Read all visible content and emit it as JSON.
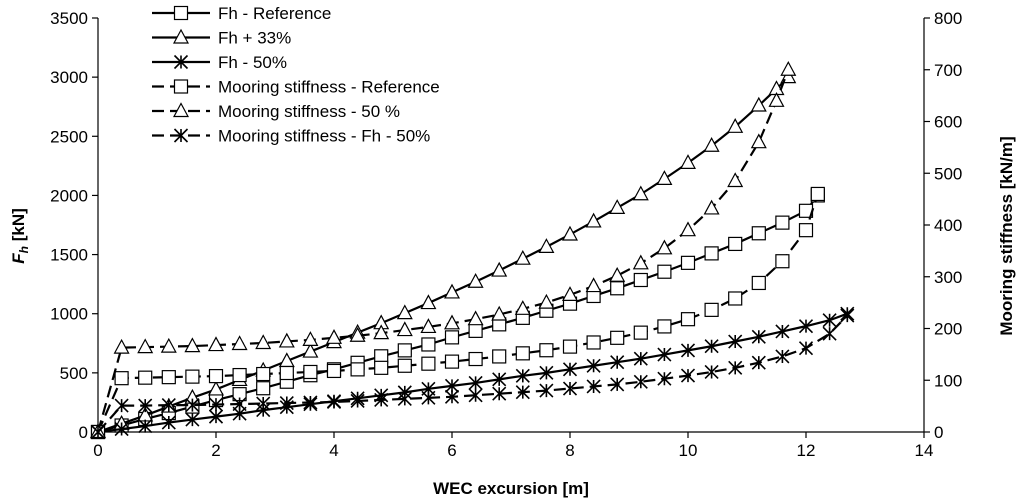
{
  "chart_data": {
    "type": "line",
    "title": "",
    "xlabel": "WEC excursion [m]",
    "ylabel_main": "F",
    "ylabel_sub": "h",
    "ylabel_unit": " [kN]",
    "y2label": "Mooring stiffness [kN/m]",
    "xlim": [
      0,
      14
    ],
    "ylim": [
      0,
      3500
    ],
    "y2lim": [
      0,
      800
    ],
    "x_ticks": [
      "0",
      "2",
      "4",
      "6",
      "8",
      "10",
      "12",
      "14"
    ],
    "y_ticks": [
      "0",
      "500",
      "1000",
      "1500",
      "2000",
      "2500",
      "3000",
      "3500"
    ],
    "y2_ticks": [
      "0",
      "100",
      "200",
      "300",
      "400",
      "500",
      "600",
      "700",
      "800"
    ],
    "grid": false,
    "legend_position": "top-left",
    "series": [
      {
        "name": "Fh - Reference",
        "axis": "left",
        "line_style": "solid",
        "marker": "square",
        "x": [
          0,
          0.4,
          0.8,
          1.2,
          1.6,
          2.0,
          2.4,
          2.8,
          3.2,
          3.6,
          4.0,
          4.4,
          4.8,
          5.2,
          5.6,
          6.0,
          6.4,
          6.8,
          7.2,
          7.6,
          8.0,
          8.4,
          8.8,
          9.2,
          9.6,
          10.0,
          10.4,
          10.8,
          11.2,
          11.6,
          12.0,
          12.2
        ],
        "y": [
          0,
          55,
          110,
          160,
          215,
          270,
          320,
          370,
          425,
          480,
          530,
          585,
          640,
          690,
          740,
          800,
          855,
          910,
          965,
          1025,
          1085,
          1150,
          1215,
          1285,
          1355,
          1430,
          1510,
          1590,
          1680,
          1770,
          1870,
          2000
        ]
      },
      {
        "name": "Fh + 33%",
        "axis": "left",
        "line_style": "solid",
        "marker": "triangle",
        "x": [
          0,
          0.4,
          0.8,
          1.2,
          1.6,
          2.0,
          2.4,
          2.8,
          3.2,
          3.6,
          4.0,
          4.4,
          4.8,
          5.2,
          5.6,
          6.0,
          6.4,
          6.8,
          7.2,
          7.6,
          8.0,
          8.4,
          8.8,
          9.2,
          9.6,
          10.0,
          10.4,
          10.8,
          11.2,
          11.5,
          11.7
        ],
        "y": [
          0,
          70,
          140,
          215,
          290,
          360,
          440,
          520,
          600,
          680,
          760,
          840,
          920,
          1005,
          1090,
          1180,
          1270,
          1365,
          1465,
          1565,
          1670,
          1780,
          1895,
          2010,
          2140,
          2275,
          2420,
          2580,
          2760,
          2900,
          3000
        ]
      },
      {
        "name": "Fh - 50%",
        "axis": "left",
        "line_style": "solid",
        "marker": "asterisk",
        "x": [
          0,
          0.4,
          0.8,
          1.2,
          1.6,
          2.0,
          2.4,
          2.8,
          3.2,
          3.6,
          4.0,
          4.4,
          4.8,
          5.2,
          5.6,
          6.0,
          6.4,
          6.8,
          7.2,
          7.6,
          8.0,
          8.4,
          8.8,
          9.2,
          9.6,
          10.0,
          10.4,
          10.8,
          11.2,
          11.6,
          12.0,
          12.4,
          12.7
        ],
        "y": [
          0,
          25,
          50,
          80,
          105,
          130,
          155,
          185,
          210,
          235,
          260,
          285,
          310,
          335,
          365,
          390,
          415,
          445,
          475,
          500,
          530,
          560,
          590,
          620,
          655,
          690,
          725,
          765,
          805,
          850,
          895,
          945,
          1000
        ]
      },
      {
        "name": "Mooring stiffness  - Reference",
        "axis": "right",
        "line_style": "dashed",
        "marker": "square",
        "x": [
          0,
          0.4,
          0.8,
          1.2,
          1.6,
          2.0,
          2.4,
          2.8,
          3.2,
          3.6,
          4.0,
          4.4,
          4.8,
          5.2,
          5.6,
          6.0,
          6.4,
          6.8,
          7.2,
          7.6,
          8.0,
          8.4,
          8.8,
          9.2,
          9.6,
          10.0,
          10.4,
          10.8,
          11.2,
          11.6,
          12.0,
          12.2
        ],
        "y": [
          0,
          104,
          105,
          106,
          107,
          108,
          110,
          112,
          114,
          116,
          118,
          121,
          124,
          128,
          132,
          136,
          141,
          146,
          152,
          158,
          165,
          173,
          182,
          192,
          204,
          218,
          236,
          258,
          288,
          330,
          390,
          460
        ]
      },
      {
        "name": "Mooring stiffness - 50 %",
        "axis": "right",
        "line_style": "dashed",
        "marker": "triangle",
        "x": [
          0,
          0.4,
          0.8,
          1.2,
          1.6,
          2.0,
          2.4,
          2.8,
          3.2,
          3.6,
          4.0,
          4.4,
          4.8,
          5.2,
          5.6,
          6.0,
          6.4,
          6.8,
          7.2,
          7.6,
          8.0,
          8.4,
          8.8,
          9.2,
          9.6,
          10.0,
          10.4,
          10.8,
          11.2,
          11.5,
          11.7
        ],
        "y": [
          0,
          163,
          164,
          165,
          166,
          168,
          170,
          172,
          175,
          178,
          182,
          186,
          191,
          197,
          203,
          210,
          218,
          227,
          238,
          250,
          265,
          282,
          302,
          326,
          355,
          390,
          432,
          485,
          560,
          640,
          700
        ]
      },
      {
        "name": "Mooring stiffness - Fh - 50%",
        "axis": "right",
        "line_style": "dashed",
        "marker": "asterisk",
        "x": [
          0,
          0.4,
          0.8,
          1.2,
          1.6,
          2.0,
          2.4,
          2.8,
          3.2,
          3.6,
          4.0,
          4.4,
          4.8,
          5.2,
          5.6,
          6.0,
          6.4,
          6.8,
          7.2,
          7.6,
          8.0,
          8.4,
          8.8,
          9.2,
          9.6,
          10.0,
          10.4,
          10.8,
          11.2,
          11.6,
          12.0,
          12.4,
          12.7
        ],
        "y": [
          0,
          51,
          51,
          52,
          52,
          53,
          54,
          55,
          56,
          57,
          58,
          60,
          62,
          64,
          66,
          68,
          71,
          74,
          77,
          80,
          84,
          88,
          92,
          97,
          103,
          109,
          116,
          124,
          134,
          146,
          162,
          190,
          225
        ]
      }
    ]
  }
}
